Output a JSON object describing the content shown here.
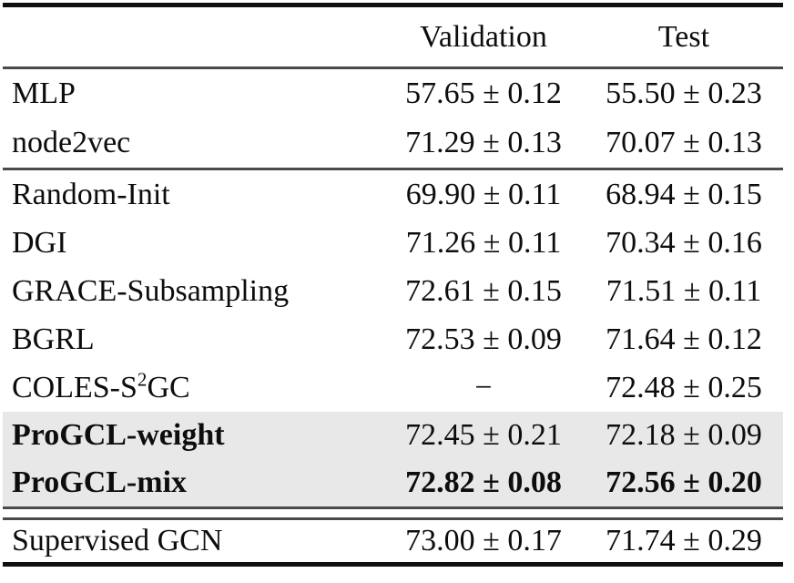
{
  "header": {
    "method_col": "",
    "validation": "Validation",
    "test": "Test"
  },
  "rows": [
    {
      "label": "MLP",
      "validation": "57.65 ± 0.12",
      "test": "55.50 ± 0.23"
    },
    {
      "label": "node2vec",
      "validation": "71.29 ± 0.13",
      "test": "70.07 ± 0.13"
    },
    {
      "label": "Random-Init",
      "validation": "69.90 ± 0.11",
      "test": "68.94 ± 0.15"
    },
    {
      "label": "DGI",
      "validation": "71.26 ± 0.11",
      "test": "70.34 ± 0.16"
    },
    {
      "label": "GRACE-Subsampling",
      "validation": "72.61 ± 0.15",
      "test": "71.51 ± 0.11"
    },
    {
      "label": "BGRL",
      "validation": "72.53 ± 0.09",
      "test": "71.64 ± 0.12"
    },
    {
      "label_pre": "COLES-S",
      "label_sup": "2",
      "label_post": "GC",
      "validation": "−",
      "test": "72.48 ± 0.25"
    },
    {
      "label": "ProGCL-weight",
      "validation": "72.45 ± 0.21",
      "test": "72.18 ± 0.09"
    },
    {
      "label": "ProGCL-mix",
      "validation": "72.82 ± 0.08",
      "test": "72.56 ± 0.20"
    },
    {
      "label": "Supervised GCN",
      "validation": "73.00 ± 0.17",
      "test": "71.74 ± 0.29"
    }
  ],
  "colors": {
    "highlight_row": "#e8e8e8",
    "rule_heavy": "#101010",
    "rule_light": "#4a4a4a",
    "text": "#0d0d0d"
  }
}
